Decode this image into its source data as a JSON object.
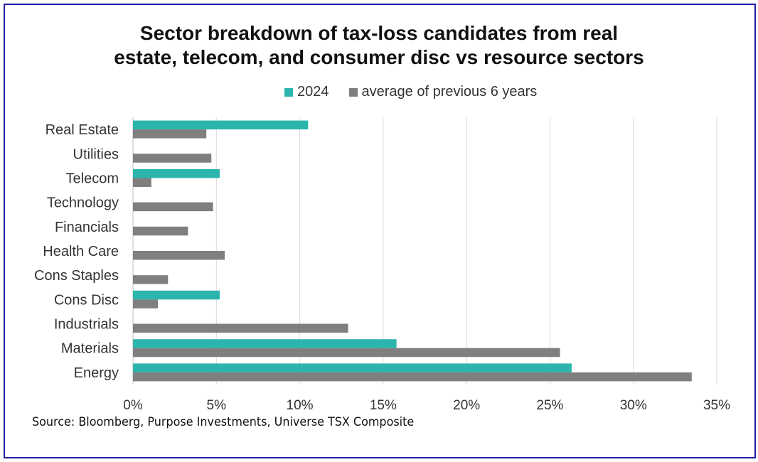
{
  "colors": {
    "series_2024": "#2bb5ad",
    "series_avg": "#7f7f7f",
    "frame": "#1f1fa8",
    "grid": "#d9d9d9"
  },
  "chart_data": {
    "type": "bar",
    "orientation": "horizontal",
    "title": "Sector breakdown of tax-loss candidates from real estate, telecom, and consumer disc vs resource sectors",
    "title_lines": [
      "Sector breakdown of tax-loss candidates from real",
      "estate, telecom, and consumer disc vs resource sectors"
    ],
    "categories": [
      "Real Estate",
      "Utilities",
      "Telecom",
      "Technology",
      "Financials",
      "Health Care",
      "Cons Staples",
      "Cons Disc",
      "Industrials",
      "Materials",
      "Energy"
    ],
    "series": [
      {
        "name": "2024",
        "values": [
          10.5,
          0,
          5.2,
          0,
          0,
          0,
          0,
          5.2,
          0,
          15.8,
          26.3
        ]
      },
      {
        "name": "average of previous 6 years",
        "values": [
          4.4,
          4.7,
          1.1,
          4.8,
          3.3,
          5.5,
          2.1,
          1.5,
          12.9,
          25.6,
          33.5
        ]
      }
    ],
    "xlim": [
      0,
      35
    ],
    "xticks": [
      "0%",
      "5%",
      "10%",
      "15%",
      "20%",
      "25%",
      "30%",
      "35%"
    ],
    "xlabel": "",
    "ylabel": "",
    "grid": "vertical",
    "legend": "top",
    "source": "Source: Bloomberg, Purpose Investments, Universe TSX Composite"
  }
}
